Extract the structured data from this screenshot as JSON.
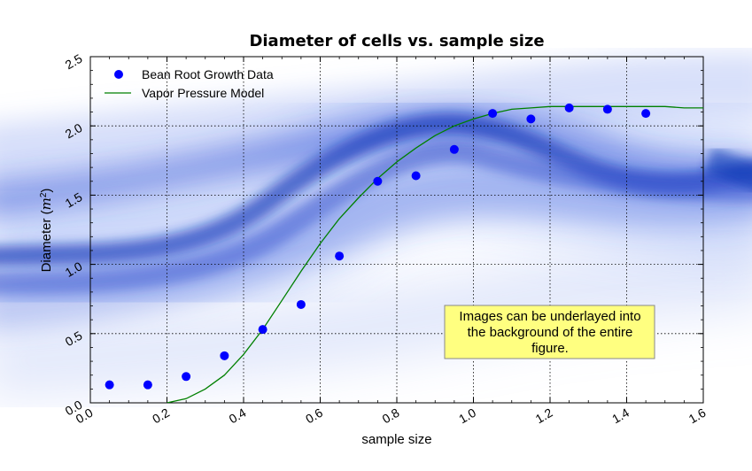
{
  "chart_data": {
    "type": "scatter",
    "title": "Diameter of cells vs. sample size",
    "xlabel": "sample size",
    "ylabel": "Diameter (m²)",
    "ylabel_parts": {
      "prefix": "Diameter (",
      "var": "m",
      "sup": "2",
      "suffix": ")"
    },
    "xlim": [
      0.0,
      1.6
    ],
    "ylim": [
      0.0,
      2.5
    ],
    "xticks": [
      0.0,
      0.2,
      0.4,
      0.6,
      0.8,
      1.0,
      1.2,
      1.4,
      1.6
    ],
    "yticks": [
      0.0,
      0.5,
      1.0,
      1.5,
      2.0,
      2.5
    ],
    "xtick_labels": [
      "0.0",
      "0.2",
      "0.4",
      "0.6",
      "0.8",
      "1.0",
      "1.2",
      "1.4",
      "1.6"
    ],
    "ytick_labels": [
      "0.0",
      "0.5",
      "1.0",
      "1.5",
      "2.0",
      "2.5"
    ],
    "grid": true,
    "legend_position": "top-left",
    "background_image": "blue-smoke-texture",
    "series": [
      {
        "name": "Bean Root Growth Data",
        "type": "scatter",
        "color": "#0000ff",
        "marker": "circle",
        "x": [
          0.05,
          0.15,
          0.25,
          0.35,
          0.45,
          0.55,
          0.65,
          0.75,
          0.85,
          0.95,
          1.05,
          1.15,
          1.25,
          1.35,
          1.45
        ],
        "y": [
          0.13,
          0.13,
          0.19,
          0.34,
          0.53,
          0.71,
          1.06,
          1.6,
          1.64,
          1.83,
          2.09,
          2.05,
          2.13,
          2.12,
          2.09
        ]
      },
      {
        "name": "Vapor Pressure Model",
        "type": "line",
        "color": "#008000",
        "x": [
          0.2,
          0.25,
          0.3,
          0.35,
          0.4,
          0.45,
          0.5,
          0.55,
          0.6,
          0.65,
          0.7,
          0.75,
          0.8,
          0.85,
          0.9,
          0.95,
          1.0,
          1.05,
          1.1,
          1.15,
          1.2,
          1.25,
          1.3,
          1.35,
          1.4,
          1.45,
          1.5,
          1.55,
          1.6
        ],
        "y": [
          0.0,
          0.03,
          0.1,
          0.2,
          0.35,
          0.53,
          0.74,
          0.95,
          1.15,
          1.33,
          1.48,
          1.62,
          1.74,
          1.84,
          1.93,
          2.0,
          2.05,
          2.09,
          2.12,
          2.13,
          2.14,
          2.14,
          2.14,
          2.14,
          2.14,
          2.14,
          2.14,
          2.13,
          2.13
        ]
      }
    ],
    "annotation": {
      "lines": [
        "Images can be underlayed into",
        "the background of the entire",
        "figure."
      ],
      "background": "#ffff80"
    }
  }
}
